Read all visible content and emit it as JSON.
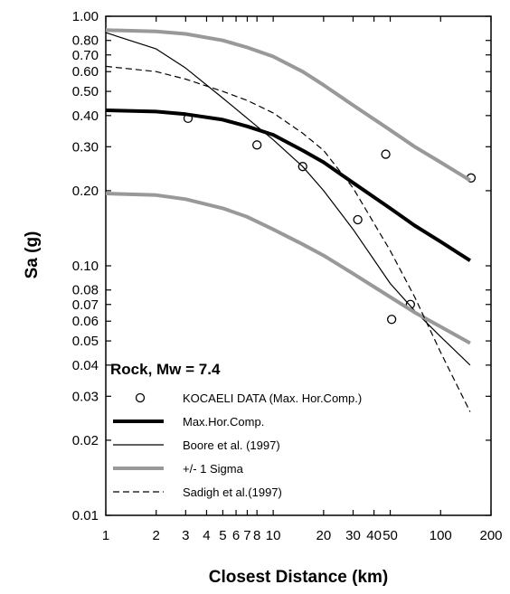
{
  "chart_data": {
    "type": "line",
    "xlabel": "Closest Distance (km)",
    "ylabel": "Sa (g)",
    "xscale": "log",
    "yscale": "log",
    "xlim": [
      1,
      200
    ],
    "ylim": [
      0.01,
      1.0
    ],
    "xticks": [
      1,
      2,
      3,
      4,
      5,
      6,
      7,
      8,
      10,
      20,
      30,
      40,
      50,
      100,
      200
    ],
    "xtick_labels": [
      "1",
      "2",
      "3",
      "4",
      "5",
      "6",
      "7",
      "8",
      "10",
      "20",
      "30",
      "40",
      "50",
      "100",
      "200"
    ],
    "yticks": [
      0.01,
      0.02,
      0.03,
      0.04,
      0.05,
      0.06,
      0.07,
      0.08,
      0.1,
      0.2,
      0.3,
      0.4,
      0.5,
      0.6,
      0.7,
      0.8,
      1.0
    ],
    "ytick_labels": [
      "0.01",
      "0.02",
      "0.03",
      "0.04",
      "0.05",
      "0.06",
      "0.07",
      "0.08",
      "0.10",
      "0.20",
      "0.30",
      "0.40",
      "0.50",
      "0.60",
      "0.70",
      "0.80",
      "1.00"
    ],
    "annotation": "Rock, Mw = 7.4",
    "legend_position": "lower-left",
    "series": [
      {
        "name": "KOCAELI DATA (Max. Hor.Comp.)",
        "style": "marker-open-circle",
        "color": "#000000",
        "x": [
          3.1,
          8.0,
          15.0,
          32.0,
          47.0,
          51.0,
          66.0,
          152.0
        ],
        "y": [
          0.39,
          0.305,
          0.25,
          0.153,
          0.28,
          0.061,
          0.07,
          0.225
        ]
      },
      {
        "name": "Max.Hor.Comp.",
        "style": "solid-thick",
        "color": "#000000",
        "x": [
          1,
          2,
          3,
          5,
          7,
          10,
          15,
          20,
          30,
          50,
          70,
          100,
          150
        ],
        "y": [
          0.42,
          0.415,
          0.405,
          0.385,
          0.362,
          0.335,
          0.29,
          0.26,
          0.215,
          0.17,
          0.145,
          0.125,
          0.105
        ]
      },
      {
        "name": "Boore et al. (1997)",
        "style": "solid-thin",
        "color": "#000000",
        "x": [
          1,
          2,
          3,
          5,
          7,
          10,
          15,
          20,
          30,
          50,
          70,
          100,
          150
        ],
        "y": [
          0.86,
          0.74,
          0.62,
          0.47,
          0.39,
          0.32,
          0.25,
          0.2,
          0.14,
          0.085,
          0.066,
          0.052,
          0.04
        ]
      },
      {
        "name": "+/- 1 Sigma",
        "style": "solid-thick-gray",
        "color": "#999999",
        "x": [
          1,
          2,
          3,
          5,
          7,
          10,
          15,
          20,
          30,
          50,
          70,
          100,
          150
        ],
        "y": [
          0.88,
          0.87,
          0.85,
          0.8,
          0.75,
          0.69,
          0.6,
          0.53,
          0.44,
          0.35,
          0.3,
          0.26,
          0.22
        ]
      },
      {
        "name": "",
        "style": "solid-thick-gray",
        "color": "#999999",
        "x": [
          1,
          2,
          3,
          5,
          7,
          10,
          15,
          20,
          30,
          50,
          70,
          100,
          150
        ],
        "y": [
          0.195,
          0.192,
          0.185,
          0.17,
          0.157,
          0.14,
          0.122,
          0.11,
          0.093,
          0.075,
          0.065,
          0.057,
          0.049
        ]
      },
      {
        "name": "Sadigh et al.(1997)",
        "style": "dashed-thin",
        "color": "#000000",
        "x": [
          1,
          2,
          3,
          5,
          7,
          10,
          15,
          20,
          30,
          50,
          70,
          100,
          150
        ],
        "y": [
          0.63,
          0.6,
          0.56,
          0.5,
          0.46,
          0.41,
          0.34,
          0.29,
          0.205,
          0.115,
          0.075,
          0.045,
          0.026
        ]
      }
    ]
  }
}
